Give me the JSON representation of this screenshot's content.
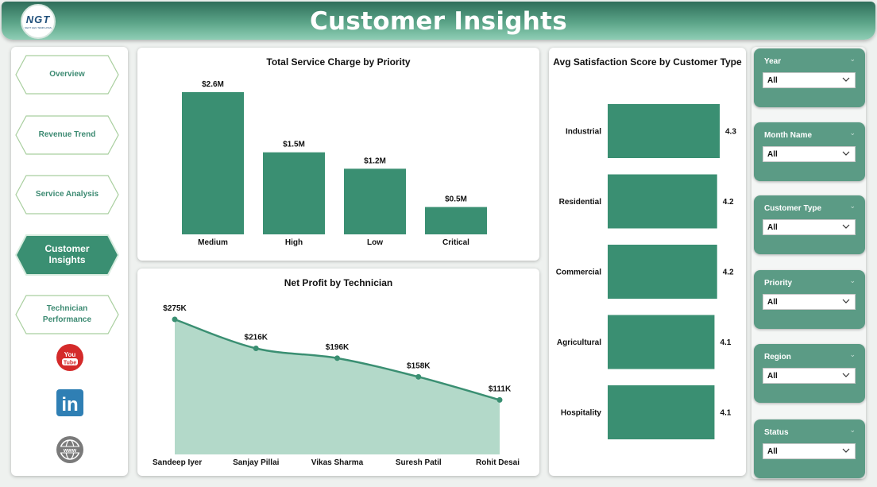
{
  "header": {
    "title": "Customer Insights",
    "logo_text": "NGT",
    "logo_subtext": "NEXT GEN TEMPLATES"
  },
  "nav": {
    "items": [
      {
        "label": "Overview",
        "active": false
      },
      {
        "label": "Revenue Trend",
        "active": false
      },
      {
        "label": "Service Analysis",
        "active": false
      },
      {
        "label": "Customer Insights",
        "active": true
      },
      {
        "label": "Technician Performance",
        "active": false
      }
    ],
    "social": [
      {
        "name": "youtube-icon",
        "text": "You Tube",
        "color": "#d42a2a"
      },
      {
        "name": "linkedin-icon",
        "text": "in",
        "color": "#2f7fb4"
      },
      {
        "name": "globe-icon",
        "text": "www",
        "color": "#7a7a7a"
      }
    ]
  },
  "colors": {
    "accent": "#3a8f72",
    "area_fill": "#b3d9c9",
    "line": "#3a8f72",
    "nav_active": "#3a8f72",
    "slicer_bg": "#5b9b85"
  },
  "charts": {
    "service_charge": {
      "title": "Total Service Charge by Priority"
    },
    "net_profit": {
      "title": "Net Profit by Technician"
    },
    "satisfaction": {
      "title": "Avg Satisfaction Score by Customer Type"
    }
  },
  "chart_data": [
    {
      "type": "bar",
      "title": "Total Service Charge by Priority",
      "categories": [
        "Medium",
        "High",
        "Low",
        "Critical"
      ],
      "values": [
        2.6,
        1.5,
        1.2,
        0.5
      ],
      "value_labels": [
        "$2.6M",
        "$1.5M",
        "$1.2M",
        "$0.5M"
      ],
      "unit": "$M",
      "ylim": [
        0,
        2.6
      ]
    },
    {
      "type": "area",
      "title": "Net Profit by Technician",
      "categories": [
        "Sandeep Iyer",
        "Sanjay Pillai",
        "Vikas Sharma",
        "Suresh Patil",
        "Rohit Desai"
      ],
      "values": [
        275,
        216,
        196,
        158,
        111
      ],
      "value_labels": [
        "$275K",
        "$216K",
        "$196K",
        "$158K",
        "$111K"
      ],
      "unit": "$K"
    },
    {
      "type": "bar",
      "orientation": "horizontal",
      "title": "Avg Satisfaction Score by Customer Type",
      "categories": [
        "Industrial",
        "Residential",
        "Commercial",
        "Agricultural",
        "Hospitality"
      ],
      "values": [
        4.3,
        4.2,
        4.2,
        4.1,
        4.1
      ],
      "value_labels": [
        "4.3",
        "4.2",
        "4.2",
        "4.1",
        "4.1"
      ]
    }
  ],
  "slicers": [
    {
      "label": "Year",
      "value": "All"
    },
    {
      "label": "Month Name",
      "value": "All"
    },
    {
      "label": "Customer Type",
      "value": "All"
    },
    {
      "label": "Priority",
      "value": "All"
    },
    {
      "label": "Region",
      "value": "All"
    },
    {
      "label": "Status",
      "value": "All"
    }
  ]
}
